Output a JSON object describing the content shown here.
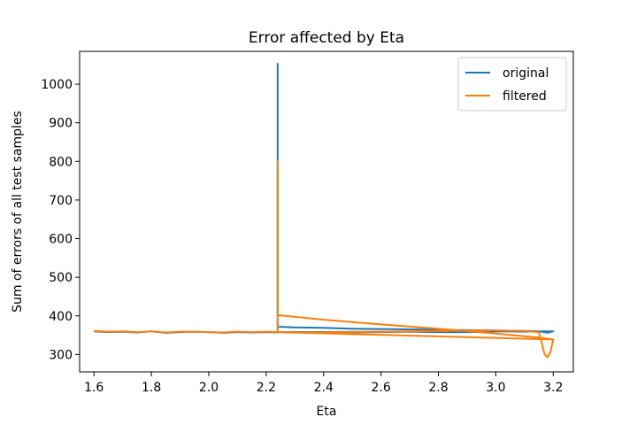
{
  "chart_data": {
    "type": "line",
    "title": "Error affected by Eta",
    "xlabel": "Eta",
    "ylabel": "Sum of errors of all test samples",
    "xlim": [
      1.55,
      3.27
    ],
    "ylim": [
      255,
      1085
    ],
    "xticks": [
      1.6,
      1.8,
      2.0,
      2.2,
      2.4,
      2.6,
      2.8,
      3.0,
      3.2
    ],
    "xtick_labels": [
      "1.6",
      "1.8",
      "2.0",
      "2.2",
      "2.4",
      "2.6",
      "2.8",
      "3.0",
      "3.2"
    ],
    "yticks": [
      300,
      400,
      500,
      600,
      700,
      800,
      900,
      1000
    ],
    "ytick_labels": [
      "300",
      "400",
      "500",
      "600",
      "700",
      "800",
      "900",
      "1000"
    ],
    "grid": false,
    "legend": {
      "position": "top-right"
    },
    "series": [
      {
        "name": "original",
        "color": "#1f77b4",
        "x": [
          1.6,
          1.65,
          1.7,
          1.75,
          1.8,
          1.85,
          1.9,
          1.95,
          2.0,
          2.05,
          2.1,
          2.15,
          2.2,
          2.24,
          2.24,
          2.24,
          2.3,
          2.4,
          2.5,
          2.6,
          2.7,
          2.8,
          2.85,
          2.9,
          3.0,
          3.1,
          3.15,
          3.2,
          2.24,
          2.3,
          2.4,
          2.5,
          2.6,
          2.7,
          2.8,
          2.9,
          3.0,
          3.1,
          3.15,
          3.18,
          3.2
        ],
        "y": [
          360,
          358,
          359,
          357,
          360,
          356,
          358,
          359,
          358,
          356,
          358,
          357,
          358,
          357,
          1053,
          372,
          370,
          369,
          367,
          366,
          365,
          364,
          363,
          363,
          362,
          361,
          360,
          360,
          358,
          357,
          356,
          357,
          358,
          359,
          358,
          358,
          360,
          359,
          360,
          356,
          360
        ]
      },
      {
        "name": "filtered",
        "color": "#ff7f0e",
        "x": [
          1.6,
          1.65,
          1.7,
          1.75,
          1.8,
          1.85,
          1.9,
          1.95,
          2.0,
          2.05,
          2.1,
          2.15,
          2.2,
          2.24,
          2.24,
          2.24,
          2.4,
          2.6,
          2.8,
          3.0,
          3.15,
          3.2,
          2.24,
          2.3,
          2.4,
          2.5,
          2.6,
          2.7,
          2.8,
          2.9,
          3.0,
          3.1,
          3.15,
          3.16,
          3.17,
          3.18,
          3.19,
          3.2
        ],
        "y": [
          361,
          359,
          360,
          358,
          360,
          357,
          359,
          359,
          358,
          357,
          359,
          358,
          359,
          358,
          800,
          402,
          390,
          378,
          367,
          354,
          344,
          339,
          358,
          357,
          357,
          358,
          359,
          360,
          361,
          362,
          362,
          361,
          358,
          330,
          300,
          293,
          305,
          340
        ]
      }
    ]
  }
}
